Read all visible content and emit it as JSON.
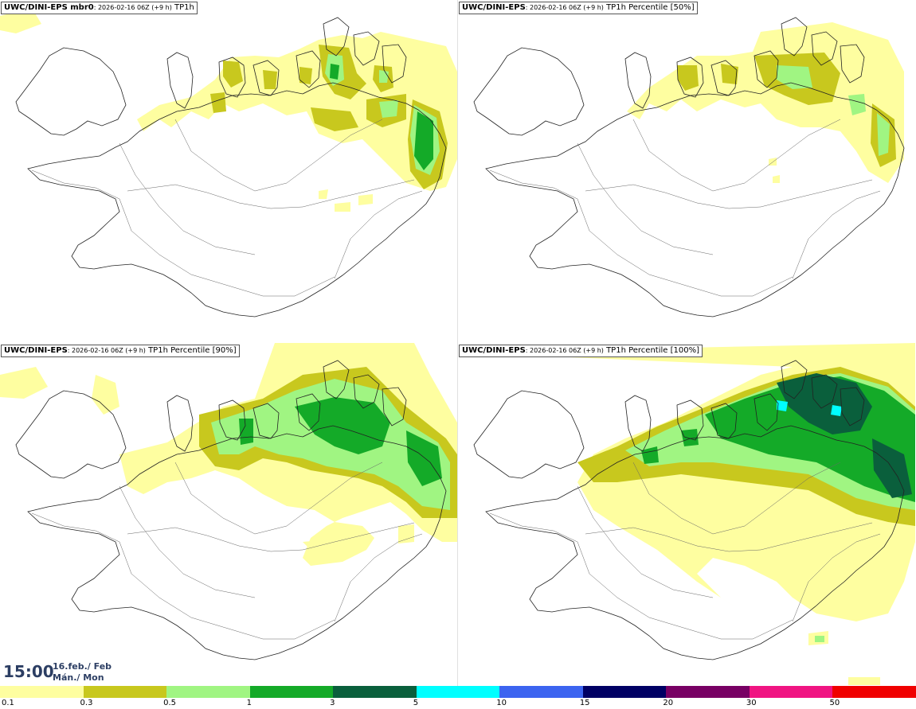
{
  "panels": [
    {
      "model": "UWC/DINI-EPS mbr0",
      "run": ": 2026-02-16 06Z (+9 h)",
      "field": " TP1h",
      "variant": "mbr0"
    },
    {
      "model": "UWC/DINI-EPS",
      "run": ": 2026-02-16 06Z (+9 h)",
      "field": " TP1h Percentile [50%]",
      "variant": "p50"
    },
    {
      "model": "UWC/DINI-EPS",
      "run": ": 2026-02-16 06Z (+9 h)",
      "field": " TP1h Percentile [90%]",
      "variant": "p90"
    },
    {
      "model": "UWC/DINI-EPS",
      "run": ": 2026-02-16 06Z (+9 h)",
      "field": " TP1h Percentile [100%]",
      "variant": "p100"
    }
  ],
  "valid_time": {
    "time": "15:00",
    "date_line1": "16.feb./ Feb",
    "date_line2": "Mán./ Mon"
  },
  "legend": {
    "colors": [
      "#fefea0",
      "#c8c81e",
      "#a0f582",
      "#14aa28",
      "#0a5f3c",
      "#00ffff",
      "#3c64f0",
      "#000064",
      "#780064",
      "#f01482",
      "#f00000"
    ],
    "ticks": [
      "0.1",
      "0.3",
      "0.5",
      "1",
      "3",
      "5",
      "10",
      "15",
      "20",
      "30",
      "50"
    ]
  }
}
